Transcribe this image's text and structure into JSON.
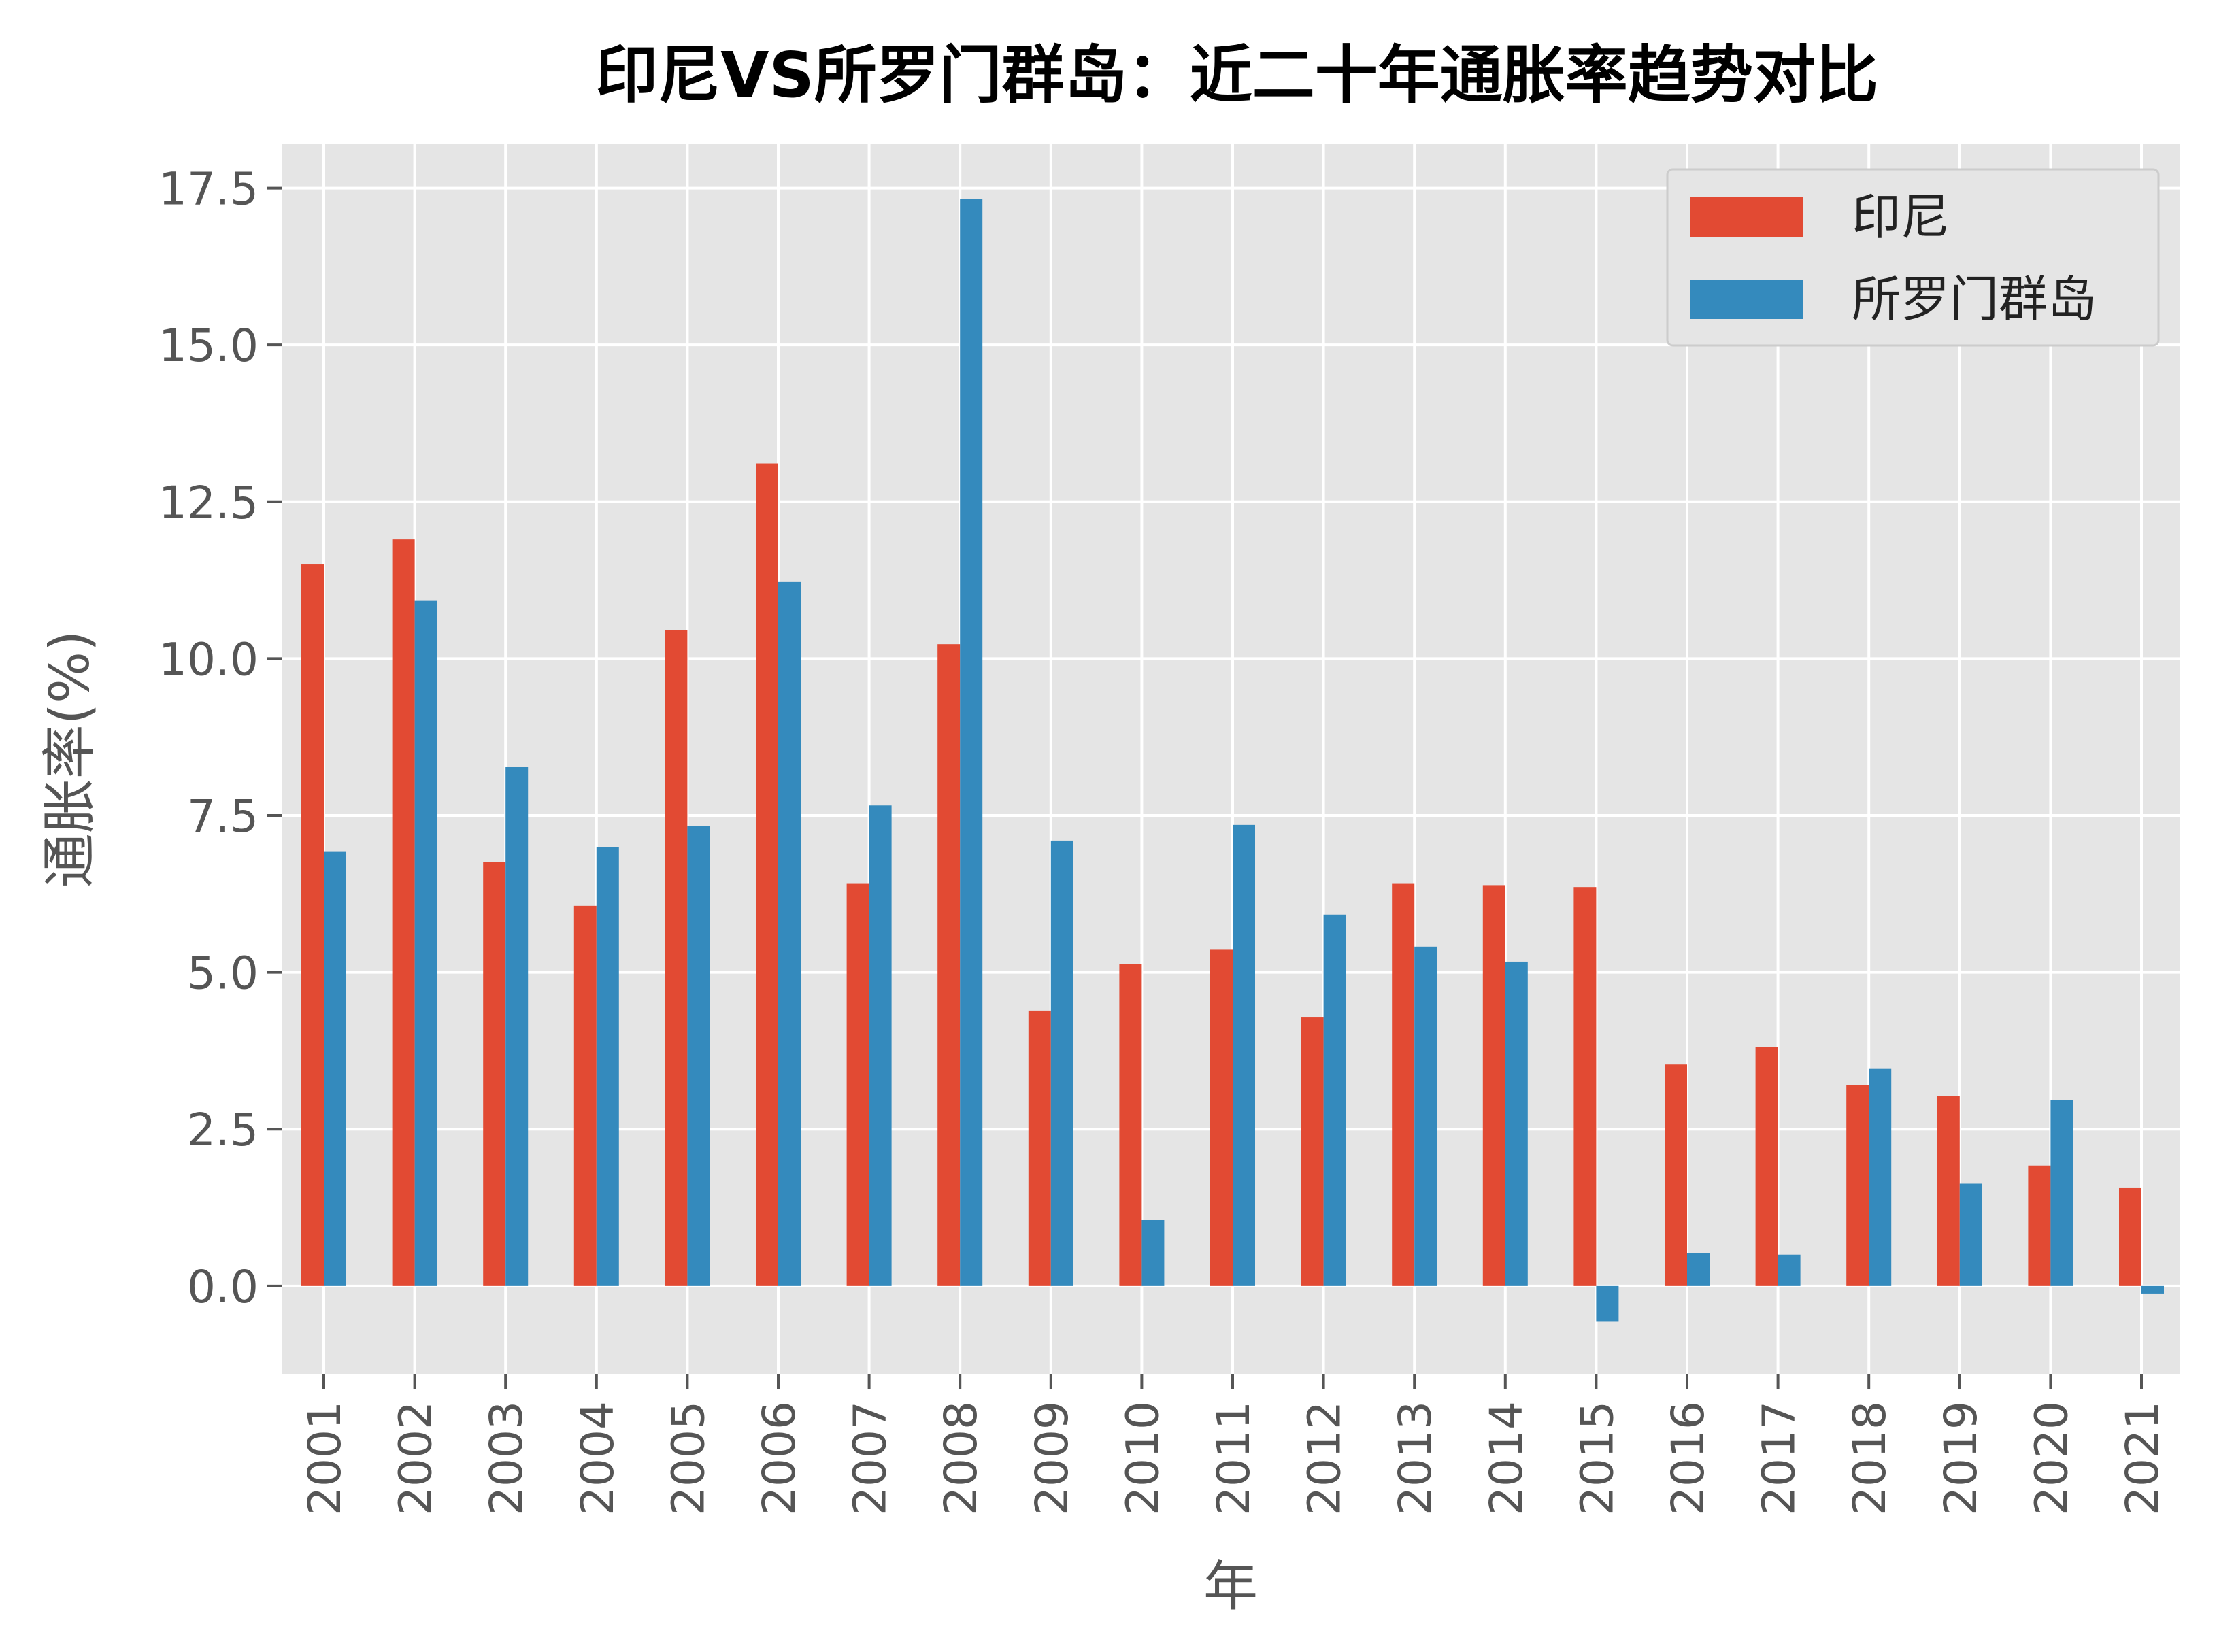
{
  "chart_data": {
    "type": "bar",
    "title": "印尼VS所罗门群岛：近二十年通胀率趋势对比",
    "xlabel": "年",
    "ylabel": "通胀率(%)",
    "categories": [
      "2001",
      "2002",
      "2003",
      "2004",
      "2005",
      "2006",
      "2007",
      "2008",
      "2009",
      "2010",
      "2011",
      "2012",
      "2013",
      "2014",
      "2015",
      "2016",
      "2017",
      "2018",
      "2019",
      "2020",
      "2021"
    ],
    "series": [
      {
        "name": "印尼",
        "color": "#E24A33",
        "values": [
          11.5,
          11.9,
          6.76,
          6.06,
          10.45,
          13.11,
          6.41,
          10.23,
          4.39,
          5.13,
          5.36,
          4.28,
          6.41,
          6.39,
          6.36,
          3.53,
          3.81,
          3.2,
          3.03,
          1.92,
          1.56
        ]
      },
      {
        "name": "所罗门群岛",
        "color": "#348ABD",
        "values": [
          6.93,
          10.93,
          8.27,
          7.0,
          7.33,
          11.22,
          7.66,
          17.33,
          7.1,
          1.05,
          7.35,
          5.92,
          5.41,
          5.17,
          -0.57,
          0.52,
          0.5,
          3.46,
          1.63,
          2.96,
          -0.12
        ]
      }
    ],
    "yticks": [
      "0.0",
      "2.5",
      "5.0",
      "7.5",
      "10.0",
      "12.5",
      "15.0",
      "17.5"
    ],
    "ylim": [
      -1.4,
      18.2
    ],
    "grid": true,
    "legend_position": "top-right",
    "background_color": "#E5E5E5"
  }
}
